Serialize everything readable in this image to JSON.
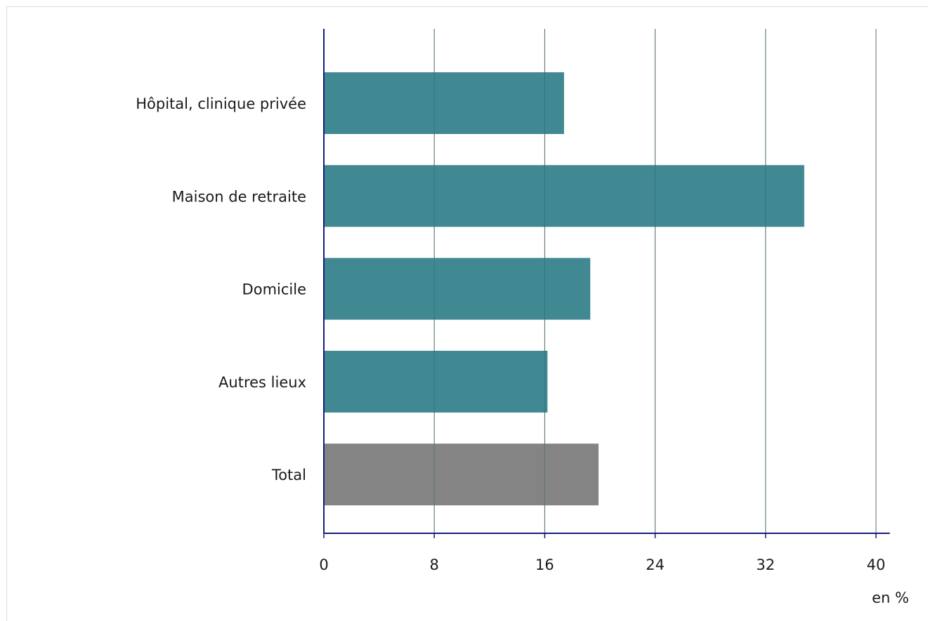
{
  "chart_data": {
    "type": "bar",
    "orientation": "horizontal",
    "categories": [
      "Hôpital, clinique privée",
      "Maison de retraite",
      "Domicile",
      "Autres lieux",
      "Total"
    ],
    "values": [
      17.4,
      34.8,
      19.3,
      16.2,
      19.9
    ],
    "bar_colors": [
      "#3a8590",
      "#3a8590",
      "#3a8590",
      "#3a8590",
      "#808080"
    ],
    "xlim": [
      0,
      41
    ],
    "xticks": [
      0,
      8,
      16,
      24,
      32,
      40
    ],
    "xlabel": "en %",
    "grid": true,
    "axis_color": "#1a1a7a",
    "grid_color": "#808080"
  }
}
